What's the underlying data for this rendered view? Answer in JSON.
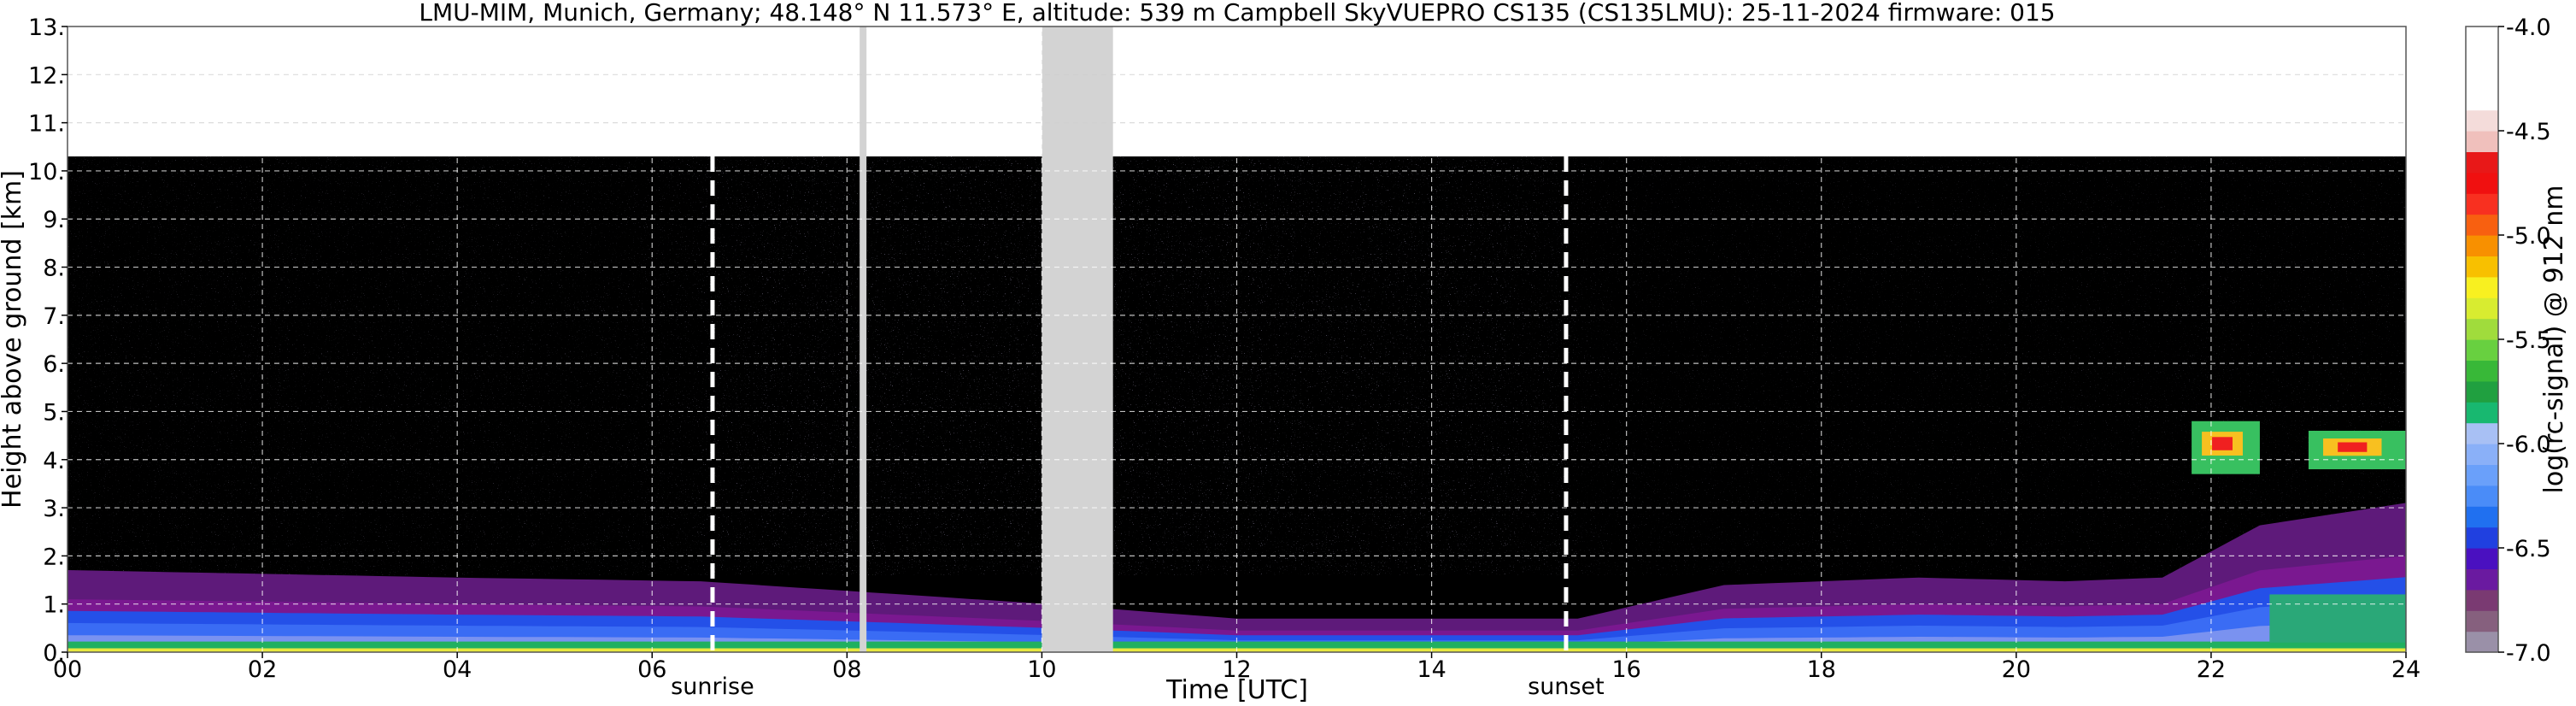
{
  "chart_data": {
    "type": "heatmap",
    "title": "LMU-MIM, Munich, Germany; 48.148° N 11.573° E, altitude: 539 m    Campbell SkyVUEPRO CS135 (CS135LMU): 25-11-2024    firmware: 015",
    "xlabel": "Time [UTC]",
    "ylabel": "Height above ground [km]",
    "xlim": [
      0,
      24
    ],
    "ylim": [
      0,
      13
    ],
    "x_ticks": [
      0,
      2,
      4,
      6,
      8,
      10,
      12,
      14,
      16,
      18,
      20,
      22,
      24
    ],
    "x_tick_labels": [
      "00",
      "02",
      "04",
      "06",
      "08",
      "10",
      "12",
      "14",
      "16",
      "18",
      "20",
      "22",
      "24"
    ],
    "y_ticks": [
      0,
      1,
      2,
      3,
      4,
      5,
      6,
      7,
      8,
      9,
      10,
      11,
      12,
      13
    ],
    "y_tick_labels": [
      "0.",
      "1.",
      "2.",
      "3.",
      "4.",
      "5.",
      "6.",
      "7.",
      "8.",
      "9.",
      "10.",
      "11.",
      "12.",
      "13."
    ],
    "grid": true,
    "max_range_km": 10.3,
    "sunrise": {
      "time": 6.62,
      "label": "sunrise"
    },
    "sunset": {
      "time": 15.38,
      "label": "sunset"
    },
    "data_gaps": [
      [
        8.13,
        8.2
      ],
      [
        10.0,
        10.73
      ]
    ],
    "aerosol_layer_top_km": [
      [
        0,
        1.1
      ],
      [
        2,
        1.05
      ],
      [
        4,
        1.0
      ],
      [
        6.5,
        0.95
      ],
      [
        10,
        0.65
      ],
      [
        12,
        0.45
      ],
      [
        15.5,
        0.45
      ],
      [
        17,
        0.9
      ],
      [
        19,
        1.0
      ],
      [
        20.5,
        0.95
      ],
      [
        21.5,
        1.0
      ],
      [
        22.5,
        1.7
      ],
      [
        24,
        2.0
      ]
    ],
    "clouds": [
      {
        "t_start": 21.8,
        "t_end": 22.5,
        "base_km": 3.7,
        "top_km": 4.8
      },
      {
        "t_start": 23.0,
        "t_end": 24.0,
        "base_km": 3.8,
        "top_km": 4.6
      }
    ],
    "colorbar": {
      "label": "log(rc-signal) @ 912 nm",
      "range": [
        -7.0,
        -4.0
      ],
      "ticks": [
        -7.0,
        -6.5,
        -6.0,
        -5.5,
        -5.0,
        -4.5,
        -4.0
      ],
      "tick_labels": [
        "-7.0",
        "-6.5",
        "-6.0",
        "-5.5",
        "-5.0",
        "-4.5",
        "-4.0"
      ],
      "colors": [
        "#9a90a8",
        "#86607e",
        "#7a3a72",
        "#6a1aa0",
        "#4a10c0",
        "#2040e0",
        "#2070f0",
        "#4a8cf8",
        "#6aa0fa",
        "#8ab0f8",
        "#a8c0f4",
        "#18b870",
        "#20a040",
        "#38b838",
        "#68d040",
        "#a0dc3c",
        "#d8ec30",
        "#f8f020",
        "#f8c000",
        "#f89000",
        "#f86010",
        "#f83020",
        "#f01010",
        "#e81818",
        "#f0c0bc",
        "#f4dcda",
        "#ffffff",
        "#ffffff",
        "#ffffff",
        "#ffffff"
      ]
    }
  }
}
